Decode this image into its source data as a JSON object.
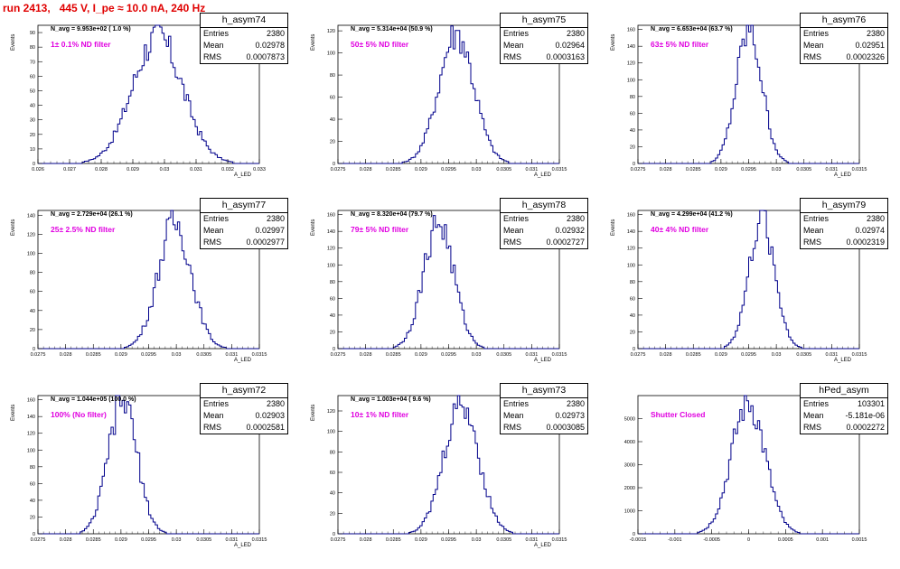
{
  "header": {
    "title": "run 2413,   445 V, I_pe ≈ 10.0 nA, 240 Hz"
  },
  "chart_data": [
    {
      "type": "bar",
      "name": "h_asym74",
      "navg": "N_avg = 9.953e+02 ( 1.0 %)",
      "filter": "1± 0.1% ND filter",
      "stats": {
        "entries": "2380",
        "mean": "0.02978",
        "rms": "0.0007873"
      },
      "ylabel": "Events",
      "xlabel": "A_LED",
      "xlim": [
        0.026,
        0.033
      ],
      "ylim": [
        0,
        95
      ],
      "xticks": [
        "0.026",
        "0.027",
        "0.028",
        "0.029",
        "0.03",
        "0.031",
        "0.032",
        "0.033"
      ],
      "yticks": [
        "0",
        "10",
        "20",
        "30",
        "40",
        "50",
        "60",
        "70",
        "80",
        "90"
      ],
      "ytick_values": [
        0,
        10,
        20,
        30,
        40,
        50,
        60,
        70,
        80,
        90
      ],
      "mean": 0.02978,
      "sigma": 0.00079,
      "peak": 87
    },
    {
      "type": "bar",
      "name": "h_asym75",
      "navg": "N_avg = 5.314e+04 (50.9 %)",
      "filter": "50± 5% ND filter",
      "stats": {
        "entries": "2380",
        "mean": "0.02964",
        "rms": "0.0003163"
      },
      "ylabel": "Events",
      "xlabel": "A_LED",
      "xlim": [
        0.0275,
        0.0315
      ],
      "ylim": [
        0,
        125
      ],
      "xticks": [
        "0.0275",
        "0.028",
        "0.0285",
        "0.029",
        "0.0295",
        "0.03",
        "0.0305",
        "0.031",
        "0.0315"
      ],
      "yticks": [
        "0",
        "20",
        "40",
        "60",
        "80",
        "100",
        "120"
      ],
      "ytick_values": [
        0,
        20,
        40,
        60,
        80,
        100,
        120
      ],
      "mean": 0.02964,
      "sigma": 0.000316,
      "peak": 118
    },
    {
      "type": "bar",
      "name": "h_asym76",
      "navg": "N_avg = 6.653e+04 (63.7 %)",
      "filter": "63± 5% ND filter",
      "stats": {
        "entries": "2380",
        "mean": "0.02951",
        "rms": "0.0002326"
      },
      "ylabel": "Events",
      "xlabel": "A_LED",
      "xlim": [
        0.0275,
        0.0315
      ],
      "ylim": [
        0,
        165
      ],
      "xticks": [
        "0.0275",
        "0.028",
        "0.0285",
        "0.029",
        "0.0295",
        "0.03",
        "0.0305",
        "0.031",
        "0.0315"
      ],
      "yticks": [
        "0",
        "20",
        "40",
        "60",
        "80",
        "100",
        "120",
        "140",
        "160"
      ],
      "ytick_values": [
        0,
        20,
        40,
        60,
        80,
        100,
        120,
        140,
        160
      ],
      "mean": 0.02951,
      "sigma": 0.000233,
      "peak": 158
    },
    {
      "type": "bar",
      "name": "h_asym77",
      "navg": "N_avg = 2.729e+04 (26.1 %)",
      "filter": "25± 2.5% ND filter",
      "stats": {
        "entries": "2380",
        "mean": "0.02997",
        "rms": "0.0002977"
      },
      "ylabel": "Events",
      "xlabel": "A_LED",
      "xlim": [
        0.0275,
        0.0315
      ],
      "ylim": [
        0,
        145
      ],
      "xticks": [
        "0.0275",
        "0.028",
        "0.0285",
        "0.029",
        "0.0295",
        "0.03",
        "0.0305",
        "0.031",
        "0.0315"
      ],
      "yticks": [
        "0",
        "20",
        "40",
        "60",
        "80",
        "100",
        "120",
        "140"
      ],
      "ytick_values": [
        0,
        20,
        40,
        60,
        80,
        100,
        120,
        140
      ],
      "mean": 0.02997,
      "sigma": 0.000298,
      "peak": 132
    },
    {
      "type": "bar",
      "name": "h_asym78",
      "navg": "N_avg = 8.320e+04 (79.7 %)",
      "filter": "79± 5% ND filter",
      "stats": {
        "entries": "2380",
        "mean": "0.02932",
        "rms": "0.0002727"
      },
      "ylabel": "Events",
      "xlabel": "A_LED",
      "xlim": [
        0.0275,
        0.0315
      ],
      "ylim": [
        0,
        165
      ],
      "xticks": [
        "0.0275",
        "0.028",
        "0.0285",
        "0.029",
        "0.0295",
        "0.03",
        "0.0305",
        "0.031",
        "0.0315"
      ],
      "yticks": [
        "0",
        "20",
        "40",
        "60",
        "80",
        "100",
        "120",
        "140",
        "160"
      ],
      "ytick_values": [
        0,
        20,
        40,
        60,
        80,
        100,
        120,
        140,
        160
      ],
      "mean": 0.02932,
      "sigma": 0.000273,
      "peak": 150
    },
    {
      "type": "bar",
      "name": "h_asym79",
      "navg": "N_avg = 4.299e+04 (41.2 %)",
      "filter": "40± 4% ND filter",
      "stats": {
        "entries": "2380",
        "mean": "0.02974",
        "rms": "0.0002319"
      },
      "ylabel": "Events",
      "xlabel": "A_LED",
      "xlim": [
        0.0275,
        0.0315
      ],
      "ylim": [
        0,
        165
      ],
      "xticks": [
        "0.0275",
        "0.028",
        "0.0285",
        "0.029",
        "0.0295",
        "0.03",
        "0.0305",
        "0.031",
        "0.0315"
      ],
      "yticks": [
        "0",
        "20",
        "40",
        "60",
        "80",
        "100",
        "120",
        "140",
        "160"
      ],
      "ytick_values": [
        0,
        20,
        40,
        60,
        80,
        100,
        120,
        140,
        160
      ],
      "mean": 0.02974,
      "sigma": 0.000232,
      "peak": 155
    },
    {
      "type": "bar",
      "name": "h_asym72",
      "navg": "N_avg = 1.044e+05 (100.0 %)",
      "filter": "100% (No filter)",
      "stats": {
        "entries": "2380",
        "mean": "0.02903",
        "rms": "0.0002581"
      },
      "ylabel": "Events",
      "xlabel": "A_LED",
      "xlim": [
        0.0275,
        0.0315
      ],
      "ylim": [
        0,
        165
      ],
      "xticks": [
        "0.0275",
        "0.028",
        "0.0285",
        "0.029",
        "0.0295",
        "0.03",
        "0.0305",
        "0.031",
        "0.0315"
      ],
      "yticks": [
        "0",
        "20",
        "40",
        "60",
        "80",
        "100",
        "120",
        "140",
        "160"
      ],
      "ytick_values": [
        0,
        20,
        40,
        60,
        80,
        100,
        120,
        140,
        160
      ],
      "mean": 0.02903,
      "sigma": 0.000258,
      "peak": 160
    },
    {
      "type": "bar",
      "name": "h_asym73",
      "navg": "N_avg = 1.003e+04 ( 9.6 %)",
      "filter": "10± 1% ND filter",
      "stats": {
        "entries": "2380",
        "mean": "0.02973",
        "rms": "0.0003085"
      },
      "ylabel": "Events",
      "xlabel": "A_LED",
      "xlim": [
        0.0275,
        0.0315
      ],
      "ylim": [
        0,
        135
      ],
      "xticks": [
        "0.0275",
        "0.028",
        "0.0285",
        "0.029",
        "0.0295",
        "0.03",
        "0.0305",
        "0.031",
        "0.0315"
      ],
      "yticks": [
        "0",
        "20",
        "40",
        "60",
        "80",
        "100",
        "120"
      ],
      "ytick_values": [
        0,
        20,
        40,
        60,
        80,
        100,
        120
      ],
      "mean": 0.02973,
      "sigma": 0.000309,
      "peak": 128
    },
    {
      "type": "bar",
      "name": "hPed_asym",
      "navg": "",
      "filter": "Shutter Closed",
      "stats": {
        "entries": "103301",
        "mean": "-5.181e-06",
        "rms": "0.0002272"
      },
      "ylabel": "",
      "xlabel": "",
      "xlim": [
        -0.0015,
        0.0015
      ],
      "ylim": [
        0,
        6000
      ],
      "xticks": [
        "-0.0015",
        "-0.001",
        "-0.0005",
        "0",
        "0.0005",
        "0.001",
        "0.0015"
      ],
      "yticks": [
        "0",
        "1000",
        "2000",
        "3000",
        "4000",
        "5000"
      ],
      "ytick_values": [
        0,
        1000,
        2000,
        3000,
        4000,
        5000
      ],
      "mean": -5.2e-06,
      "sigma": 0.000227,
      "peak": 5700
    }
  ]
}
